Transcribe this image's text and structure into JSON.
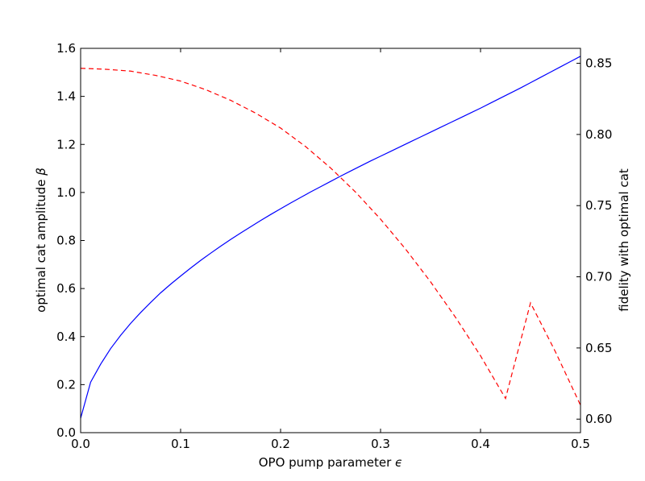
{
  "chart_data": {
    "type": "line",
    "xlabel": "OPO pump parameter",
    "xlabel_symbol": "ϵ",
    "ylabel_left": "optimal cat amplitude",
    "ylabel_left_symbol": "β",
    "ylabel_right": "fidelity with optimal cat",
    "xlim": [
      0.0,
      0.5
    ],
    "ylim_left": [
      0.0,
      1.6
    ],
    "ylim_right": [
      0.5905,
      0.8605
    ],
    "x_ticks": [
      "0.0",
      "0.1",
      "0.2",
      "0.3",
      "0.4",
      "0.5"
    ],
    "left_ticks": [
      "0.0",
      "0.2",
      "0.4",
      "0.6",
      "0.8",
      "1.0",
      "1.2",
      "1.4",
      "1.6"
    ],
    "right_ticks": [
      "0.60",
      "0.65",
      "0.70",
      "0.75",
      "0.80",
      "0.85"
    ],
    "grid": false,
    "series": [
      {
        "axis": "left",
        "color": "#0000ff",
        "style": "solid",
        "x": [
          0.0,
          0.01,
          0.02,
          0.03,
          0.04,
          0.05,
          0.06,
          0.07,
          0.08,
          0.09,
          0.1,
          0.11,
          0.12,
          0.13,
          0.14,
          0.15,
          0.16,
          0.17,
          0.18,
          0.19,
          0.2,
          0.21,
          0.22,
          0.23,
          0.24,
          0.25,
          0.26,
          0.27,
          0.28,
          0.29,
          0.3,
          0.31,
          0.32,
          0.33,
          0.34,
          0.35,
          0.36,
          0.37,
          0.38,
          0.39,
          0.4,
          0.41,
          0.42,
          0.43,
          0.44,
          0.45,
          0.46,
          0.47,
          0.48,
          0.49,
          0.5
        ],
        "y": [
          0.06,
          0.21,
          0.285,
          0.35,
          0.405,
          0.455,
          0.5,
          0.542,
          0.582,
          0.618,
          0.652,
          0.685,
          0.717,
          0.747,
          0.776,
          0.804,
          0.831,
          0.857,
          0.883,
          0.908,
          0.932,
          0.956,
          0.979,
          1.002,
          1.024,
          1.046,
          1.068,
          1.089,
          1.11,
          1.131,
          1.151,
          1.171,
          1.191,
          1.211,
          1.231,
          1.251,
          1.271,
          1.291,
          1.311,
          1.331,
          1.351,
          1.372,
          1.393,
          1.414,
          1.435,
          1.457,
          1.479,
          1.501,
          1.523,
          1.545,
          1.567
        ]
      },
      {
        "axis": "right",
        "color": "#ff0000",
        "style": "dashed",
        "x": [
          0.0,
          0.025,
          0.05,
          0.075,
          0.1,
          0.125,
          0.15,
          0.175,
          0.2,
          0.225,
          0.25,
          0.275,
          0.3,
          0.325,
          0.35,
          0.375,
          0.4,
          0.425,
          0.45,
          0.475,
          0.5
        ],
        "y": [
          0.8465,
          0.8458,
          0.8445,
          0.8415,
          0.8375,
          0.8315,
          0.824,
          0.815,
          0.8045,
          0.7915,
          0.7765,
          0.7595,
          0.7405,
          0.7195,
          0.6965,
          0.6715,
          0.6445,
          0.6145,
          0.6817,
          0.6472,
          0.6098
        ]
      }
    ]
  }
}
